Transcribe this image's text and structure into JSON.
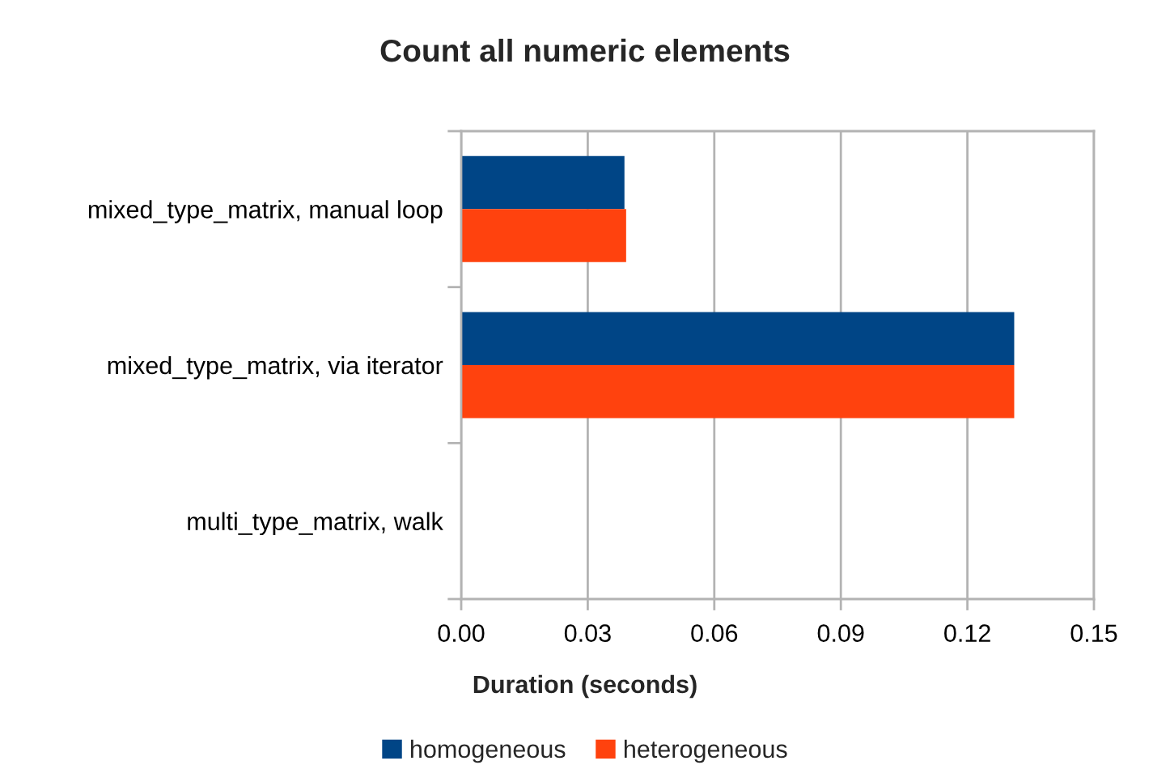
{
  "chart_data": {
    "type": "bar",
    "orientation": "horizontal",
    "title": "Count all numeric elements",
    "xlabel": "Duration (seconds)",
    "categories": [
      "mixed_type_matrix, manual loop",
      "mixed_type_matrix, via iterator",
      "multi_type_matrix, walk"
    ],
    "series": [
      {
        "name": "homogeneous",
        "color": "#004586",
        "values": [
          0.0387,
          0.1311,
          null
        ]
      },
      {
        "name": "heterogeneous",
        "color": "#ff420e",
        "values": [
          0.0391,
          0.1311,
          null
        ]
      }
    ],
    "xlim": [
      0,
      0.15
    ],
    "xticks": [
      {
        "value": 0,
        "label": "0.00"
      },
      0.03,
      0.06,
      0.09,
      0.12,
      0.15
    ],
    "grid": "x",
    "legend": "bottom"
  }
}
